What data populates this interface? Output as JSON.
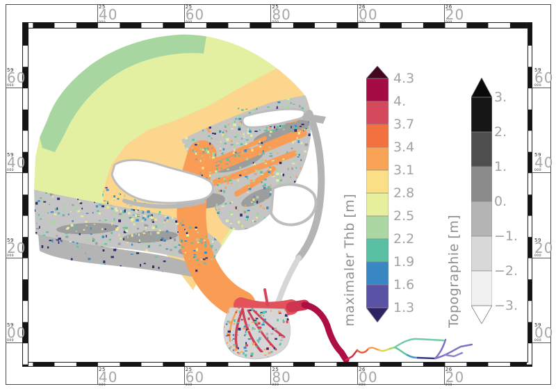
{
  "frame": {
    "x_ticks": [
      {
        "prefix": "25",
        "value": "40",
        "suffix": "000"
      },
      {
        "prefix": "25",
        "value": "60",
        "suffix": "000"
      },
      {
        "prefix": "25",
        "value": "80",
        "suffix": "000"
      },
      {
        "prefix": "26",
        "value": "00",
        "suffix": "000"
      },
      {
        "prefix": "26",
        "value": "20",
        "suffix": "000"
      }
    ],
    "y_ticks": [
      {
        "prefix": "59",
        "value": "60",
        "suffix": "000"
      },
      {
        "prefix": "59",
        "value": "40",
        "suffix": "000"
      },
      {
        "prefix": "59",
        "value": "20",
        "suffix": "000"
      },
      {
        "prefix": "59",
        "value": "00",
        "suffix": "000"
      }
    ]
  },
  "colorbars": {
    "thb": {
      "title": "maximaler Thb [m]",
      "labels": [
        "4.3",
        "4.",
        "3.7",
        "3.4",
        "3.1",
        "2.8",
        "2.5",
        "2.2",
        "1.9",
        "1.6",
        "1.3"
      ],
      "colors": [
        "#a50c45",
        "#d44a5c",
        "#f3703f",
        "#f9a356",
        "#fbdf87",
        "#e6f09c",
        "#abd8a2",
        "#59c0a4",
        "#3a88c3",
        "#5a52a5"
      ],
      "cap_top": "#45051f",
      "cap_bottom": "#2b2364"
    },
    "topo": {
      "title": "Topographie [m]",
      "labels": [
        "3.",
        "2.",
        "1.",
        "0.",
        "−1.",
        "−2.",
        "−3."
      ],
      "colors": [
        "#161616",
        "#4e4e4e",
        "#8b8b8b",
        "#b4b4b4",
        "#d8d8d8",
        "#f1f1f1"
      ],
      "cap_top": "#0a0a0a",
      "cap_bottom": "#ffffff"
    }
  },
  "map_zones": {
    "pale": "#e4f0a1",
    "green": "#a8d6a1",
    "tan": "#fbd68c",
    "gray_flats": "#c5c5c5",
    "gray_dark": "#9d9d9d",
    "gray_coast": "#b4b4b4",
    "gray_light": "#d6d6d6",
    "white": "#ffffff",
    "island_stroke": "#bdbdbd",
    "orange": "#f89c56",
    "red": "#e2525b",
    "red_deep": "#cf3550",
    "crimson": "#ad0f45",
    "red_branch": "#cf3f55",
    "spur": "#d8435c",
    "river_colors": [
      "#cf2f44",
      "#e85c3e",
      "#f59d4f",
      "#e3d44f",
      "#a8d66e",
      "#5fc49e",
      "#6fcba4",
      "#3f9dc9",
      "#36357e",
      "#7b74c5",
      "#7b74c5",
      "#8a84cc"
    ]
  },
  "speckle_palettes": {
    "central": [
      [
        "#a8d6a1",
        26
      ],
      [
        "#5ec2a4",
        16
      ],
      [
        "#e4f0a1",
        16
      ],
      [
        "#f9a356",
        12
      ],
      [
        "#9d9d9d",
        10
      ],
      [
        "#3b8ec4",
        8
      ],
      [
        "#2f2a6e",
        8
      ],
      [
        "#fbdf87",
        4
      ]
    ],
    "south": [
      [
        "#a8d6a1",
        22
      ],
      [
        "#5ec2a4",
        18
      ],
      [
        "#e4f0a1",
        14
      ],
      [
        "#3b8ec4",
        14
      ],
      [
        "#2f2a6e",
        14
      ],
      [
        "#9d9d9d",
        10
      ],
      [
        "#fbdf87",
        8
      ]
    ],
    "navy": [
      [
        "#2f2a6e",
        50
      ],
      [
        "#3b8ec4",
        20
      ],
      [
        "#5ec2a4",
        15
      ],
      [
        "#9d9d9d",
        15
      ]
    ],
    "delta": [
      [
        "#5ec2a4",
        25
      ],
      [
        "#f9a356",
        20
      ],
      [
        "#cf3f55",
        15
      ],
      [
        "#3b8ec4",
        15
      ],
      [
        "#b0b0b0",
        15
      ],
      [
        "#2f2a6e",
        10
      ]
    ],
    "north": [
      [
        "#2f2a6e",
        30
      ],
      [
        "#3b8ec4",
        20
      ],
      [
        "#5ec2a4",
        25
      ],
      [
        "#a8d6a1",
        25
      ]
    ]
  },
  "chart_data": {
    "type": "heatmap",
    "description": "Coastal model map of an estuary (German Bight): maximum tidal range plotted in color over topography in grayscale",
    "x_axis_ticks": [
      "2540",
      "2560",
      "2580",
      "2600",
      "2620"
    ],
    "y_axis_ticks": [
      "5960",
      "5940",
      "5920",
      "5900"
    ],
    "legends": [
      {
        "title": "maximaler Thb [m]",
        "tick_labels": [
          "4.3",
          "4.",
          "3.7",
          "3.4",
          "3.1",
          "2.8",
          "2.5",
          "2.2",
          "1.9",
          "1.6",
          "1.3"
        ],
        "colors": [
          "#a50c45",
          "#d44a5c",
          "#f3703f",
          "#f9a356",
          "#fbdf87",
          "#e6f09c",
          "#abd8a2",
          "#59c0a4",
          "#3a88c3",
          "#5a52a5"
        ],
        "position": "right"
      },
      {
        "title": "Topographie [m]",
        "tick_labels": [
          "3.",
          "2.",
          "1.",
          "0.",
          "−1.",
          "−2.",
          "−3."
        ],
        "colors": [
          "#161616",
          "#4e4e4e",
          "#8b8b8b",
          "#b4b4b4",
          "#d8d8d8",
          "#f1f1f1"
        ],
        "position": "right"
      }
    ],
    "grid": "map frame with alternating black/white 5-km border segments"
  }
}
